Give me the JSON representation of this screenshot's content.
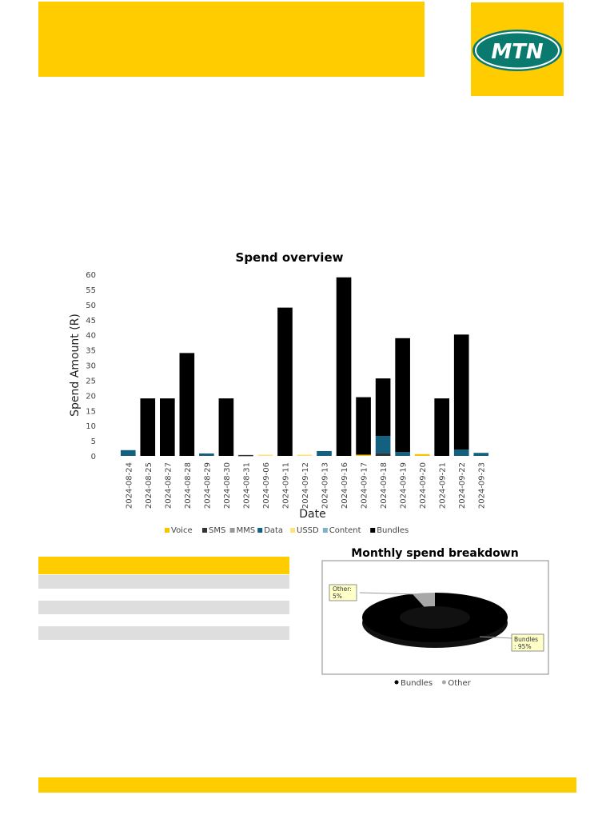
{
  "brand": {
    "logo_text": "MTN",
    "color_yellow": "#FFCC00",
    "color_black": "#000000",
    "color_white": "#FFFFFF"
  },
  "chart_data": [
    {
      "type": "bar",
      "stacked": true,
      "title": "Spend overview",
      "xlabel": "Date",
      "ylabel": "Spend Amount (R)",
      "ylim": [
        0,
        60
      ],
      "yticks": [
        0,
        5,
        10,
        15,
        20,
        25,
        30,
        35,
        40,
        45,
        50,
        55,
        60
      ],
      "grid": false,
      "legend_position": "bottom",
      "categories": [
        "2024-08-24",
        "2024-08-25",
        "2024-08-27",
        "2024-08-28",
        "2024-08-29",
        "2024-08-30",
        "2024-08-31",
        "2024-09-06",
        "2024-09-11",
        "2024-09-12",
        "2024-09-13",
        "2024-09-16",
        "2024-09-17",
        "2024-09-18",
        "2024-09-19",
        "2024-09-20",
        "2024-09-21",
        "2024-09-22",
        "2024-09-23"
      ],
      "series": [
        {
          "name": "Voice",
          "color": "#F5C400",
          "values": [
            0,
            0,
            0,
            0,
            0,
            0,
            0,
            0,
            0,
            0,
            0,
            0,
            0.4,
            0,
            0,
            0.6,
            0,
            0,
            0
          ]
        },
        {
          "name": "SMS",
          "color": "#333333",
          "values": [
            0,
            0,
            0,
            0,
            0,
            0,
            0.3,
            0,
            0,
            0,
            0,
            0,
            0,
            0.8,
            0,
            0,
            0,
            0,
            0
          ]
        },
        {
          "name": "MMS",
          "color": "#999999",
          "values": [
            0,
            0,
            0,
            0,
            0,
            0,
            0,
            0,
            0,
            0,
            0,
            0,
            0,
            0,
            0,
            0,
            0,
            0,
            0
          ]
        },
        {
          "name": "Data",
          "color": "#14607F",
          "values": [
            1.9,
            0,
            0,
            0,
            0.8,
            0,
            0,
            0,
            0,
            0,
            1.6,
            0,
            0,
            5.8,
            1.3,
            0,
            0,
            2.1,
            1.0
          ]
        },
        {
          "name": "USSD",
          "color": "#FFE27A",
          "values": [
            0,
            0,
            0,
            0,
            0,
            0,
            0,
            0.4,
            0,
            0.4,
            0,
            0,
            0,
            0,
            0,
            0,
            0,
            0,
            0
          ]
        },
        {
          "name": "Content",
          "color": "#7FB2C4",
          "values": [
            0,
            0,
            0,
            0,
            0,
            0,
            0,
            0,
            0,
            0,
            0,
            0,
            0,
            0,
            0,
            0,
            0,
            0,
            0
          ]
        },
        {
          "name": "Bundles",
          "color": "#000000",
          "values": [
            0,
            19,
            19,
            34,
            0,
            19,
            0,
            0,
            49,
            0,
            0,
            59,
            19,
            19,
            37.6,
            0,
            19,
            38,
            0
          ]
        }
      ]
    },
    {
      "type": "pie",
      "donut": true,
      "title": "Monthly spend breakdown",
      "legend_position": "bottom",
      "slices": [
        {
          "name": "Bundles",
          "value": 95,
          "color": "#000000",
          "label": "Bundles : 95%"
        },
        {
          "name": "Other",
          "value": 5,
          "color": "#A8A8A8",
          "label": "Other: 5%"
        }
      ]
    }
  ]
}
